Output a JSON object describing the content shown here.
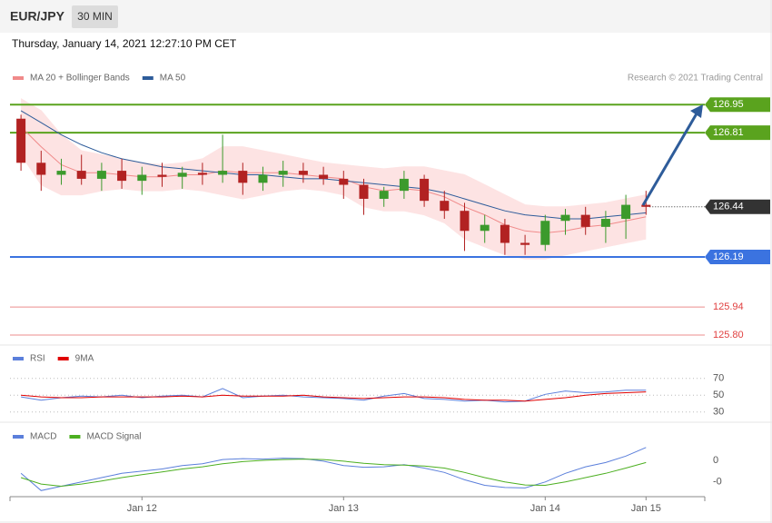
{
  "header": {
    "symbol": "EUR/JPY",
    "interval": "30 MIN",
    "timestamp": "Thursday, January 14, 2021 12:27:10 PM CET"
  },
  "chart_data": [
    {
      "type": "candlestick",
      "source": "Research © 2021 Trading Central",
      "up_color": "#3c9a2c",
      "down_color": "#b22222",
      "open": [
        126.88,
        126.66,
        126.6,
        126.62,
        126.58,
        126.62,
        126.57,
        126.6,
        126.59,
        126.61,
        126.6,
        126.62,
        126.56,
        126.6,
        126.62,
        126.6,
        126.58,
        126.55,
        126.48,
        126.52,
        126.58,
        126.47,
        126.42,
        126.32,
        126.35,
        126.26,
        126.25,
        126.37,
        126.4,
        126.34,
        126.38,
        126.45
      ],
      "high": [
        126.9,
        126.72,
        126.68,
        126.7,
        126.66,
        126.68,
        126.64,
        126.66,
        126.64,
        126.66,
        126.8,
        126.66,
        126.64,
        126.67,
        126.66,
        126.64,
        126.62,
        126.58,
        126.54,
        126.62,
        126.6,
        126.52,
        126.46,
        126.4,
        126.38,
        126.3,
        126.4,
        126.43,
        126.44,
        126.42,
        126.5,
        126.52
      ],
      "low": [
        126.62,
        126.52,
        126.55,
        126.55,
        126.52,
        126.53,
        126.5,
        126.54,
        126.53,
        126.55,
        126.56,
        126.5,
        126.52,
        126.54,
        126.56,
        126.55,
        126.48,
        126.4,
        126.44,
        126.48,
        126.44,
        126.38,
        126.22,
        126.26,
        126.2,
        126.2,
        126.22,
        126.3,
        126.3,
        126.26,
        126.28,
        126.4
      ],
      "close": [
        126.66,
        126.6,
        126.62,
        126.58,
        126.62,
        126.57,
        126.6,
        126.59,
        126.61,
        126.6,
        126.62,
        126.56,
        126.6,
        126.62,
        126.6,
        126.58,
        126.55,
        126.48,
        126.52,
        126.58,
        126.47,
        126.42,
        126.32,
        126.35,
        126.26,
        126.25,
        126.37,
        126.4,
        126.34,
        126.38,
        126.45,
        126.44
      ],
      "bands": {
        "name": "MA 20 + Bollinger Bands",
        "color": "#f08a8a",
        "fill": "#fde3e3",
        "middle": [
          126.84,
          126.74,
          126.65,
          126.61,
          126.61,
          126.6,
          126.59,
          126.59,
          126.6,
          126.6,
          126.62,
          126.61,
          126.61,
          126.61,
          126.6,
          126.59,
          126.58,
          126.54,
          126.52,
          126.53,
          126.52,
          126.49,
          126.44,
          126.4,
          126.35,
          126.32,
          126.31,
          126.32,
          126.34,
          126.35,
          126.37,
          126.39
        ],
        "upper": [
          126.98,
          126.92,
          126.8,
          126.72,
          126.7,
          126.68,
          126.66,
          126.65,
          126.66,
          126.68,
          126.74,
          126.74,
          126.72,
          126.7,
          126.68,
          126.66,
          126.65,
          126.64,
          126.63,
          126.64,
          126.64,
          126.62,
          126.6,
          126.55,
          126.5,
          126.45,
          126.44,
          126.44,
          126.45,
          126.46,
          126.48,
          126.5
        ],
        "lower": [
          126.7,
          126.55,
          126.5,
          126.5,
          126.52,
          126.53,
          126.52,
          126.52,
          126.53,
          126.52,
          126.5,
          126.48,
          126.5,
          126.52,
          126.53,
          126.52,
          126.5,
          126.44,
          126.42,
          126.42,
          126.4,
          126.36,
          126.28,
          126.24,
          126.2,
          126.18,
          126.18,
          126.2,
          126.22,
          126.24,
          126.26,
          126.28
        ]
      },
      "series": [
        {
          "name": "MA 50",
          "color": "#2e5c9a",
          "values": [
            126.92,
            126.86,
            126.8,
            126.75,
            126.71,
            126.68,
            126.66,
            126.64,
            126.63,
            126.62,
            126.61,
            126.6,
            126.6,
            126.59,
            126.58,
            126.58,
            126.57,
            126.56,
            126.55,
            126.54,
            126.53,
            126.51,
            126.48,
            126.45,
            126.42,
            126.4,
            126.39,
            126.38,
            126.38,
            126.39,
            126.4,
            126.41
          ]
        }
      ],
      "levels": [
        {
          "value": 126.95,
          "color": "#5aa31e",
          "tag": true
        },
        {
          "value": 126.81,
          "color": "#5aa31e",
          "tag": true
        },
        {
          "value": 126.44,
          "color": "#333333",
          "tag": true,
          "dotted": true
        },
        {
          "value": 126.19,
          "color": "#3b73e0",
          "tag": true
        },
        {
          "value": 125.94,
          "color": "#e04040",
          "tag": false
        },
        {
          "value": 125.8,
          "label": "125.80",
          "color": "#e04040",
          "tag": false
        }
      ],
      "ylim": [
        125.75,
        127.11
      ]
    },
    {
      "type": "line",
      "ylim": [
        20,
        100
      ],
      "yticks": [
        70,
        50,
        30
      ],
      "grid": true,
      "series": [
        {
          "name": "RSI",
          "color": "#5b7fdb",
          "values": [
            48,
            44,
            47,
            49,
            48,
            50,
            47,
            49,
            50,
            48,
            58,
            47,
            49,
            50,
            48,
            47,
            46,
            44,
            49,
            52,
            46,
            45,
            43,
            44,
            42,
            43,
            51,
            55,
            53,
            54,
            56,
            56
          ]
        },
        {
          "name": "9MA",
          "color": "#e00000",
          "values": [
            50,
            48,
            47,
            47,
            48,
            48,
            48,
            48,
            49,
            48,
            50,
            49,
            49,
            49,
            50,
            48,
            47,
            46,
            47,
            48,
            48,
            47,
            45,
            44,
            44,
            43,
            45,
            47,
            50,
            52,
            53,
            54
          ]
        }
      ]
    },
    {
      "type": "line",
      "ylim": [
        -0.08,
        0.08
      ],
      "yticks": [
        0,
        {
          "value": -0.05,
          "label": "-0"
        }
      ],
      "grid": false,
      "categories": [
        null,
        null,
        null,
        null,
        null,
        null,
        "Jan 12",
        null,
        null,
        null,
        null,
        null,
        null,
        null,
        null,
        null,
        "Jan 13",
        null,
        null,
        null,
        null,
        null,
        null,
        null,
        null,
        null,
        "Jan 14",
        null,
        null,
        null,
        null,
        "Jan 15"
      ],
      "series": [
        {
          "name": "MACD",
          "color": "#5b7fdb",
          "values": [
            -0.03,
            -0.07,
            -0.06,
            -0.05,
            -0.04,
            -0.03,
            -0.025,
            -0.02,
            -0.012,
            -0.008,
            0.002,
            0.004,
            0.003,
            0.005,
            0.004,
            -0.002,
            -0.012,
            -0.016,
            -0.015,
            -0.01,
            -0.018,
            -0.028,
            -0.045,
            -0.058,
            -0.063,
            -0.064,
            -0.05,
            -0.03,
            -0.015,
            -0.005,
            0.01,
            0.03
          ]
        },
        {
          "name": "MACD Signal",
          "color": "#4caf20",
          "values": [
            -0.04,
            -0.055,
            -0.06,
            -0.055,
            -0.048,
            -0.04,
            -0.033,
            -0.027,
            -0.02,
            -0.015,
            -0.008,
            -0.003,
            0.0,
            0.002,
            0.003,
            0.002,
            -0.002,
            -0.007,
            -0.01,
            -0.011,
            -0.013,
            -0.018,
            -0.028,
            -0.04,
            -0.05,
            -0.057,
            -0.058,
            -0.05,
            -0.04,
            -0.03,
            -0.018,
            -0.005
          ]
        }
      ]
    }
  ]
}
